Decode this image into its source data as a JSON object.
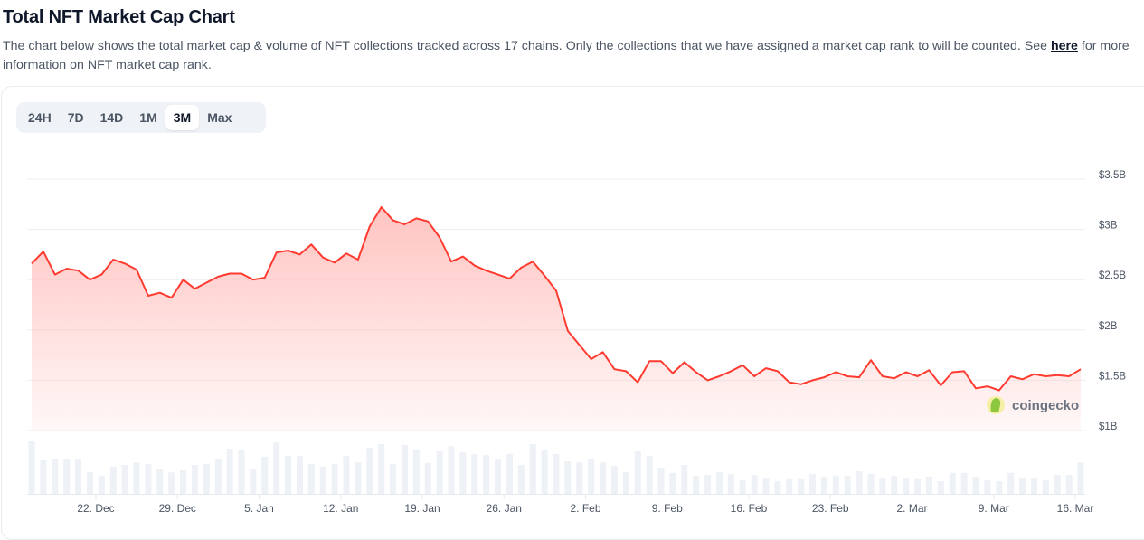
{
  "header": {
    "title": "Total NFT Market Cap Chart",
    "description": "The chart below shows the total market cap & volume of NFT collections tracked across 17 chains. Only the collections that we have assigned a market cap rank to will be counted. See ",
    "link_label": "here",
    "description_end": " for more information on NFT market cap rank."
  },
  "range_tabs": [
    {
      "label": "24H",
      "active": false
    },
    {
      "label": "7D",
      "active": false
    },
    {
      "label": "14D",
      "active": false
    },
    {
      "label": "1M",
      "active": false
    },
    {
      "label": "3M",
      "active": true
    },
    {
      "label": "Max",
      "active": false
    }
  ],
  "watermark": "coingecko",
  "chart_data": {
    "type": "area",
    "title": "",
    "ylim": [
      1.0,
      3.5
    ],
    "y_ticks": [
      {
        "value": 1.0,
        "label": "$1B"
      },
      {
        "value": 1.5,
        "label": "$1.5B"
      },
      {
        "value": 2.0,
        "label": "$2B"
      },
      {
        "value": 2.5,
        "label": "$2.5B"
      },
      {
        "value": 3.0,
        "label": "$3B"
      },
      {
        "value": 3.5,
        "label": "$3.5B"
      }
    ],
    "x_ticks": [
      "22. Dec",
      "29. Dec",
      "5. Jan",
      "12. Jan",
      "19. Jan",
      "26. Jan",
      "2. Feb",
      "9. Feb",
      "16. Feb",
      "23. Feb",
      "2. Mar",
      "9. Mar",
      "16. Mar"
    ],
    "grid": true,
    "colors": {
      "line": "#ff3b30",
      "fill": "#ffc9c7",
      "volume": "#eef1f6"
    },
    "series": [
      {
        "type": "area",
        "unit": "USD billions",
        "values": [
          2.66,
          2.78,
          2.55,
          2.61,
          2.59,
          2.5,
          2.55,
          2.7,
          2.66,
          2.6,
          2.34,
          2.37,
          2.32,
          2.5,
          2.41,
          2.47,
          2.53,
          2.56,
          2.56,
          2.5,
          2.52,
          2.77,
          2.79,
          2.75,
          2.85,
          2.72,
          2.67,
          2.76,
          2.7,
          3.03,
          3.22,
          3.09,
          3.05,
          3.11,
          3.08,
          2.92,
          2.68,
          2.73,
          2.64,
          2.59,
          2.55,
          2.51,
          2.62,
          2.68,
          2.54,
          2.39,
          1.99,
          1.85,
          1.71,
          1.78,
          1.61,
          1.59,
          1.48,
          1.69,
          1.69,
          1.57,
          1.68,
          1.58,
          1.5,
          1.54,
          1.59,
          1.65,
          1.54,
          1.62,
          1.59,
          1.48,
          1.46,
          1.5,
          1.53,
          1.58,
          1.54,
          1.53,
          1.7,
          1.54,
          1.52,
          1.58,
          1.54,
          1.6,
          1.45,
          1.58,
          1.59,
          1.42,
          1.44,
          1.4,
          1.54,
          1.51,
          1.56,
          1.54,
          1.55,
          1.54,
          1.61
        ]
      },
      {
        "type": "bar",
        "unit": "relative volume (no scale shown)",
        "values": [
          100,
          64,
          66,
          67,
          67,
          41,
          34,
          52,
          55,
          60,
          57,
          47,
          41,
          45,
          55,
          57,
          67,
          86,
          84,
          48,
          71,
          98,
          72,
          72,
          57,
          52,
          57,
          72,
          60,
          88,
          95,
          57,
          93,
          84,
          59,
          81,
          91,
          79,
          76,
          74,
          67,
          76,
          55,
          95,
          83,
          76,
          62,
          60,
          66,
          60,
          53,
          41,
          81,
          72,
          50,
          40,
          55,
          34,
          36,
          41,
          38,
          26,
          36,
          29,
          24,
          28,
          28,
          38,
          33,
          34,
          34,
          43,
          38,
          31,
          34,
          29,
          28,
          33,
          24,
          40,
          40,
          33,
          26,
          24,
          40,
          29,
          29,
          26,
          36,
          36,
          60
        ]
      }
    ]
  }
}
